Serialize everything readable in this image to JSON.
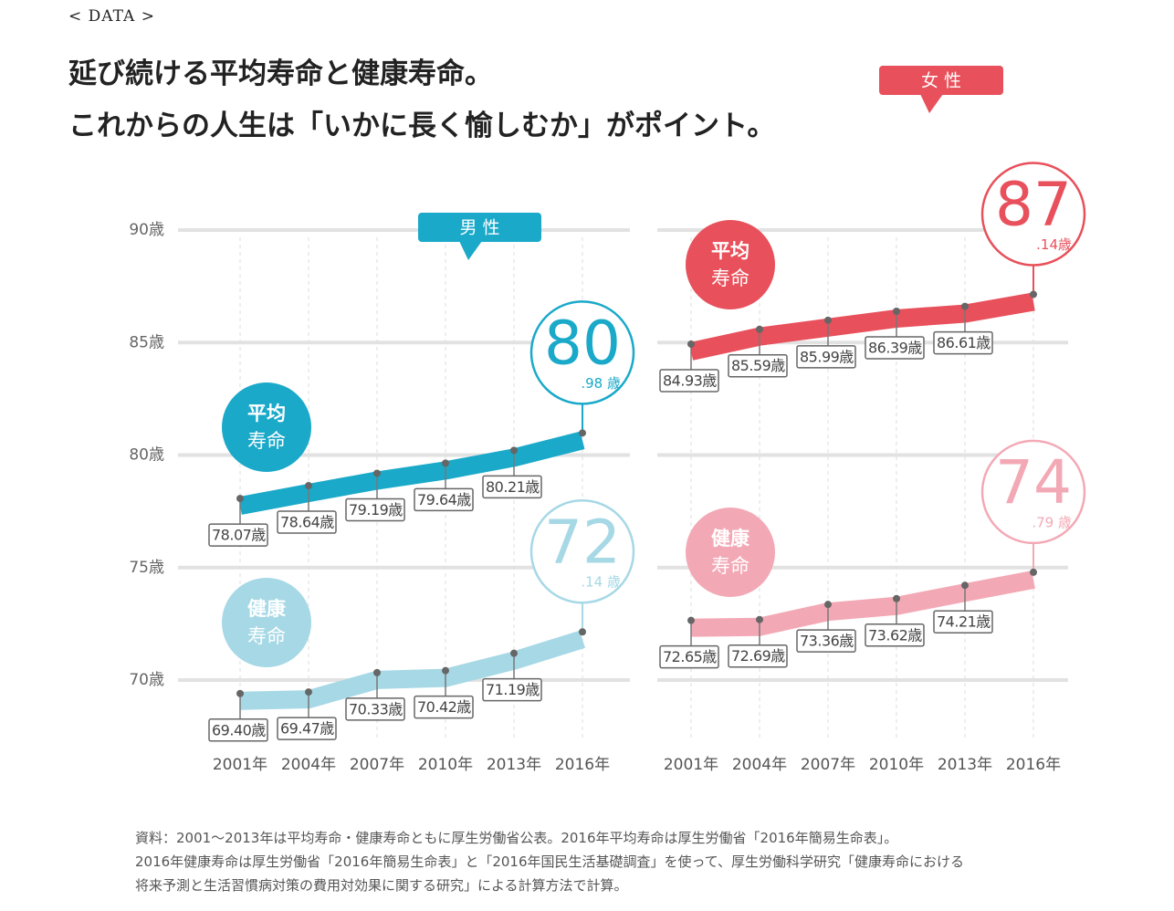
{
  "header": {
    "tag": "DATA",
    "title_lines": [
      "延び続ける平均寿命と健康寿命。",
      "これからの人生は「いかに長く愉しむか」がポイント。"
    ]
  },
  "chart_data": [
    {
      "type": "line",
      "title": "男 性",
      "color": "#1aa9c9",
      "categories": [
        "2001年",
        "2004年",
        "2007年",
        "2010年",
        "2013年",
        "2016年"
      ],
      "ylim": [
        70,
        90
      ],
      "yticks": [
        {
          "value": 70,
          "label": "70歳"
        },
        {
          "value": 75,
          "label": "75歳"
        },
        {
          "value": 80,
          "label": "80歳"
        },
        {
          "value": 85,
          "label": "85歳"
        },
        {
          "value": 90,
          "label": "90歳"
        }
      ],
      "grid": true,
      "series": [
        {
          "name_lines": [
            "平均",
            "寿命"
          ],
          "color": "#1aa9c9",
          "values": [
            78.07,
            78.64,
            79.19,
            79.64,
            80.21,
            80.98
          ],
          "value_labels": [
            "78.07歳",
            "78.64歳",
            "79.19歳",
            "79.64歳",
            "80.21歳",
            [
              "80",
              ".98 歳"
            ]
          ]
        },
        {
          "name_lines": [
            "健康",
            "寿命"
          ],
          "color": "#a6d8e6",
          "values": [
            69.4,
            69.47,
            70.33,
            70.42,
            71.19,
            72.14
          ],
          "value_labels": [
            "69.40歳",
            "69.47歳",
            "70.33歳",
            "70.42歳",
            "71.19歳",
            [
              "72",
              ".14 歳"
            ]
          ]
        }
      ]
    },
    {
      "type": "line",
      "title": "女 性",
      "color": "#e8505b",
      "categories": [
        "2001年",
        "2004年",
        "2007年",
        "2010年",
        "2013年",
        "2016年"
      ],
      "ylim": [
        70,
        90
      ],
      "yticks": [
        70,
        75,
        80,
        85,
        90
      ],
      "grid": true,
      "series": [
        {
          "name_lines": [
            "平均",
            "寿命"
          ],
          "color": "#e8505b",
          "values": [
            84.93,
            85.59,
            85.99,
            86.39,
            86.61,
            87.14
          ],
          "value_labels": [
            "84.93歳",
            "85.59歳",
            "85.99歳",
            "86.39歳",
            "86.61歳",
            [
              "87",
              ".14歳"
            ]
          ]
        },
        {
          "name_lines": [
            "健康",
            "寿命"
          ],
          "color": "#f3a9b5",
          "values": [
            72.65,
            72.69,
            73.36,
            73.62,
            74.21,
            74.79
          ],
          "value_labels": [
            "72.65歳",
            "72.69歳",
            "73.36歳",
            "73.62歳",
            "74.21歳",
            [
              "74",
              ".79 歳"
            ]
          ]
        }
      ]
    }
  ],
  "source_lines": [
    "資料：2001〜2013年は平均寿命・健康寿命ともに厚生労働省公表。2016年平均寿命は厚生労働省「2016年簡易生命表」。",
    "2016年健康寿命は厚生労働省「2016年簡易生命表」と「2016年国民生活基礎調査」を使って、厚生労働科学研究「健康寿命における",
    "将来予測と生活習慣病対策の費用対効果に関する研究」による計算方法で計算。"
  ]
}
